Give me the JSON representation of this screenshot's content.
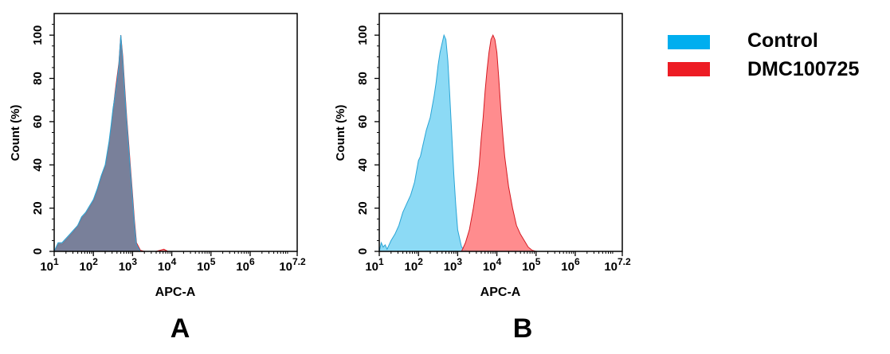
{
  "colors": {
    "control_fill": "#7fd6f4",
    "control_stroke": "#2aa5d6",
    "dmc_fill": "#ff7f82",
    "dmc_stroke": "#d41a22",
    "overlap_fill": "#6e7f9b",
    "legend_control": "#00aeef",
    "legend_dmc": "#ed1c24"
  },
  "legend": {
    "items": [
      {
        "name": "Control",
        "color": "#00aeef"
      },
      {
        "name": "DMC100725",
        "color": "#ed1c24"
      }
    ]
  },
  "chart_data": [
    {
      "type": "area",
      "panel_label": "A",
      "xlabel": "APC-A",
      "ylabel": "Count  (%)",
      "xscale": "log",
      "xlim": [
        1,
        7.2
      ],
      "ylim": [
        0,
        110
      ],
      "xticks": [
        {
          "base": "10",
          "exp": "1",
          "v": 1
        },
        {
          "base": "10",
          "exp": "2",
          "v": 2
        },
        {
          "base": "10",
          "exp": "3",
          "v": 3
        },
        {
          "base": "10",
          "exp": "4",
          "v": 4
        },
        {
          "base": "10",
          "exp": "5",
          "v": 5
        },
        {
          "base": "10",
          "exp": "6",
          "v": 6
        },
        {
          "base": "10",
          "exp": "7.2",
          "v": 7.2
        }
      ],
      "yticks": [
        0,
        20,
        40,
        60,
        80,
        100
      ],
      "series": [
        {
          "name": "DMC100725",
          "x": [
            1.0,
            1.1,
            1.2,
            1.3,
            1.4,
            1.5,
            1.6,
            1.7,
            1.8,
            1.9,
            2.0,
            2.1,
            2.2,
            2.3,
            2.4,
            2.45,
            2.5,
            2.55,
            2.6,
            2.65,
            2.7,
            2.75,
            2.8,
            2.85,
            2.9,
            2.95,
            3.0,
            3.05,
            3.1,
            3.2,
            3.3,
            3.6,
            3.8,
            3.9,
            4.0
          ],
          "y": [
            0,
            3,
            3,
            5,
            7,
            9,
            12,
            15,
            17,
            20,
            23,
            28,
            34,
            39,
            50,
            57,
            65,
            73,
            80,
            87,
            100,
            90,
            76,
            62,
            50,
            38,
            26,
            14,
            4,
            0.5,
            0,
            0,
            1,
            0,
            0
          ]
        },
        {
          "name": "Control",
          "x": [
            1.0,
            1.1,
            1.2,
            1.3,
            1.4,
            1.5,
            1.6,
            1.7,
            1.8,
            1.9,
            2.0,
            2.1,
            2.2,
            2.3,
            2.4,
            2.45,
            2.5,
            2.55,
            2.6,
            2.65,
            2.7,
            2.75,
            2.8,
            2.85,
            2.9,
            2.95,
            3.0,
            3.05,
            3.1,
            3.2
          ],
          "y": [
            0,
            4,
            4,
            6,
            8,
            10,
            12,
            16,
            18,
            21,
            24,
            29,
            35,
            40,
            51,
            58,
            66,
            72,
            78,
            86,
            100,
            88,
            74,
            60,
            48,
            36,
            24,
            12,
            3,
            0
          ]
        }
      ]
    },
    {
      "type": "area",
      "panel_label": "B",
      "xlabel": "APC-A",
      "ylabel": "Count  (%)",
      "xscale": "log",
      "xlim": [
        1,
        7.2
      ],
      "ylim": [
        0,
        110
      ],
      "xticks": [
        {
          "base": "10",
          "exp": "1",
          "v": 1
        },
        {
          "base": "10",
          "exp": "2",
          "v": 2
        },
        {
          "base": "10",
          "exp": "3",
          "v": 3
        },
        {
          "base": "10",
          "exp": "4",
          "v": 4
        },
        {
          "base": "10",
          "exp": "5",
          "v": 5
        },
        {
          "base": "10",
          "exp": "6",
          "v": 6
        },
        {
          "base": "10",
          "exp": "7.2",
          "v": 7.2
        }
      ],
      "yticks": [
        0,
        20,
        40,
        60,
        80,
        100
      ],
      "series": [
        {
          "name": "Control",
          "x": [
            1.0,
            1.05,
            1.1,
            1.15,
            1.2,
            1.3,
            1.4,
            1.5,
            1.6,
            1.7,
            1.8,
            1.9,
            2.0,
            2.05,
            2.1,
            2.2,
            2.3,
            2.4,
            2.45,
            2.5,
            2.55,
            2.6,
            2.65,
            2.7,
            2.75,
            2.8,
            2.85,
            2.9,
            2.95,
            3.0,
            3.1,
            3.2,
            3.3
          ],
          "y": [
            0,
            4,
            2,
            3,
            1,
            5,
            8,
            12,
            18,
            22,
            26,
            32,
            42,
            44,
            48,
            56,
            62,
            72,
            78,
            86,
            92,
            96,
            100,
            98,
            88,
            72,
            54,
            36,
            22,
            10,
            2,
            0.5,
            0
          ]
        },
        {
          "name": "DMC100725",
          "x": [
            3.1,
            3.2,
            3.3,
            3.4,
            3.5,
            3.55,
            3.6,
            3.65,
            3.7,
            3.75,
            3.8,
            3.85,
            3.9,
            3.95,
            4.0,
            4.05,
            4.1,
            4.15,
            4.2,
            4.3,
            4.4,
            4.5,
            4.6,
            4.7,
            4.8,
            4.9,
            5.0
          ],
          "y": [
            0,
            4,
            10,
            20,
            32,
            40,
            52,
            62,
            74,
            84,
            92,
            98,
            100,
            98,
            92,
            80,
            66,
            54,
            44,
            30,
            20,
            12,
            8,
            5,
            2,
            0.5,
            0
          ]
        }
      ]
    }
  ]
}
